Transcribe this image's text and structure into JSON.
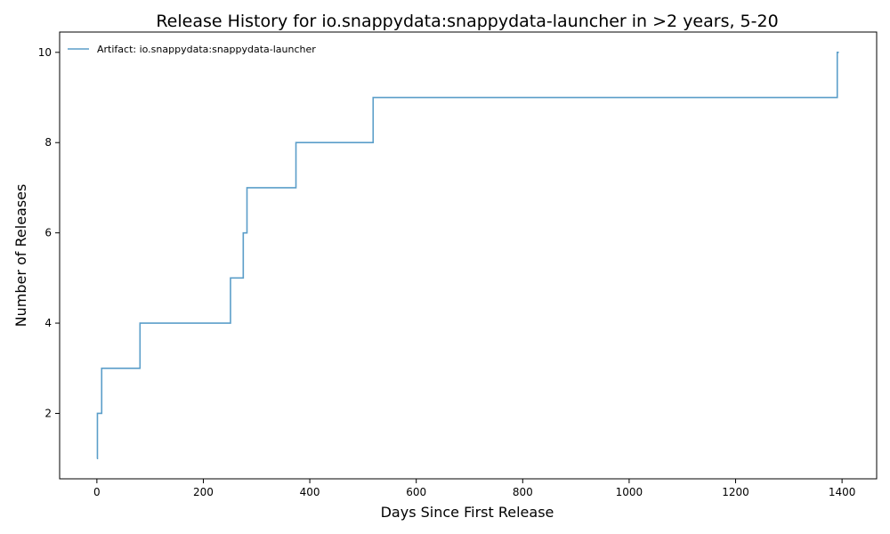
{
  "chart_data": {
    "type": "line",
    "title": "Release History for io.snappydata:snappydata-launcher in >2 years, 5-20",
    "xlabel": "Days Since First Release",
    "ylabel": "Number of Releases",
    "xlim": [
      -70,
      1465
    ],
    "ylim": [
      0.55,
      10.45
    ],
    "xticks": [
      0,
      200,
      400,
      600,
      800,
      1000,
      1200,
      1400
    ],
    "yticks": [
      2,
      4,
      6,
      8,
      10
    ],
    "grid": false,
    "legend_position": "top-left",
    "series": [
      {
        "name": "Artifact: io.snappydata:snappydata-launcher",
        "step": "post",
        "color": "#5b9ec9",
        "x": [
          0,
          1,
          9,
          81,
          251,
          275,
          282,
          374,
          519,
          1391
        ],
        "y": [
          1,
          2,
          3,
          4,
          5,
          6,
          7,
          8,
          9,
          10
        ]
      }
    ]
  }
}
